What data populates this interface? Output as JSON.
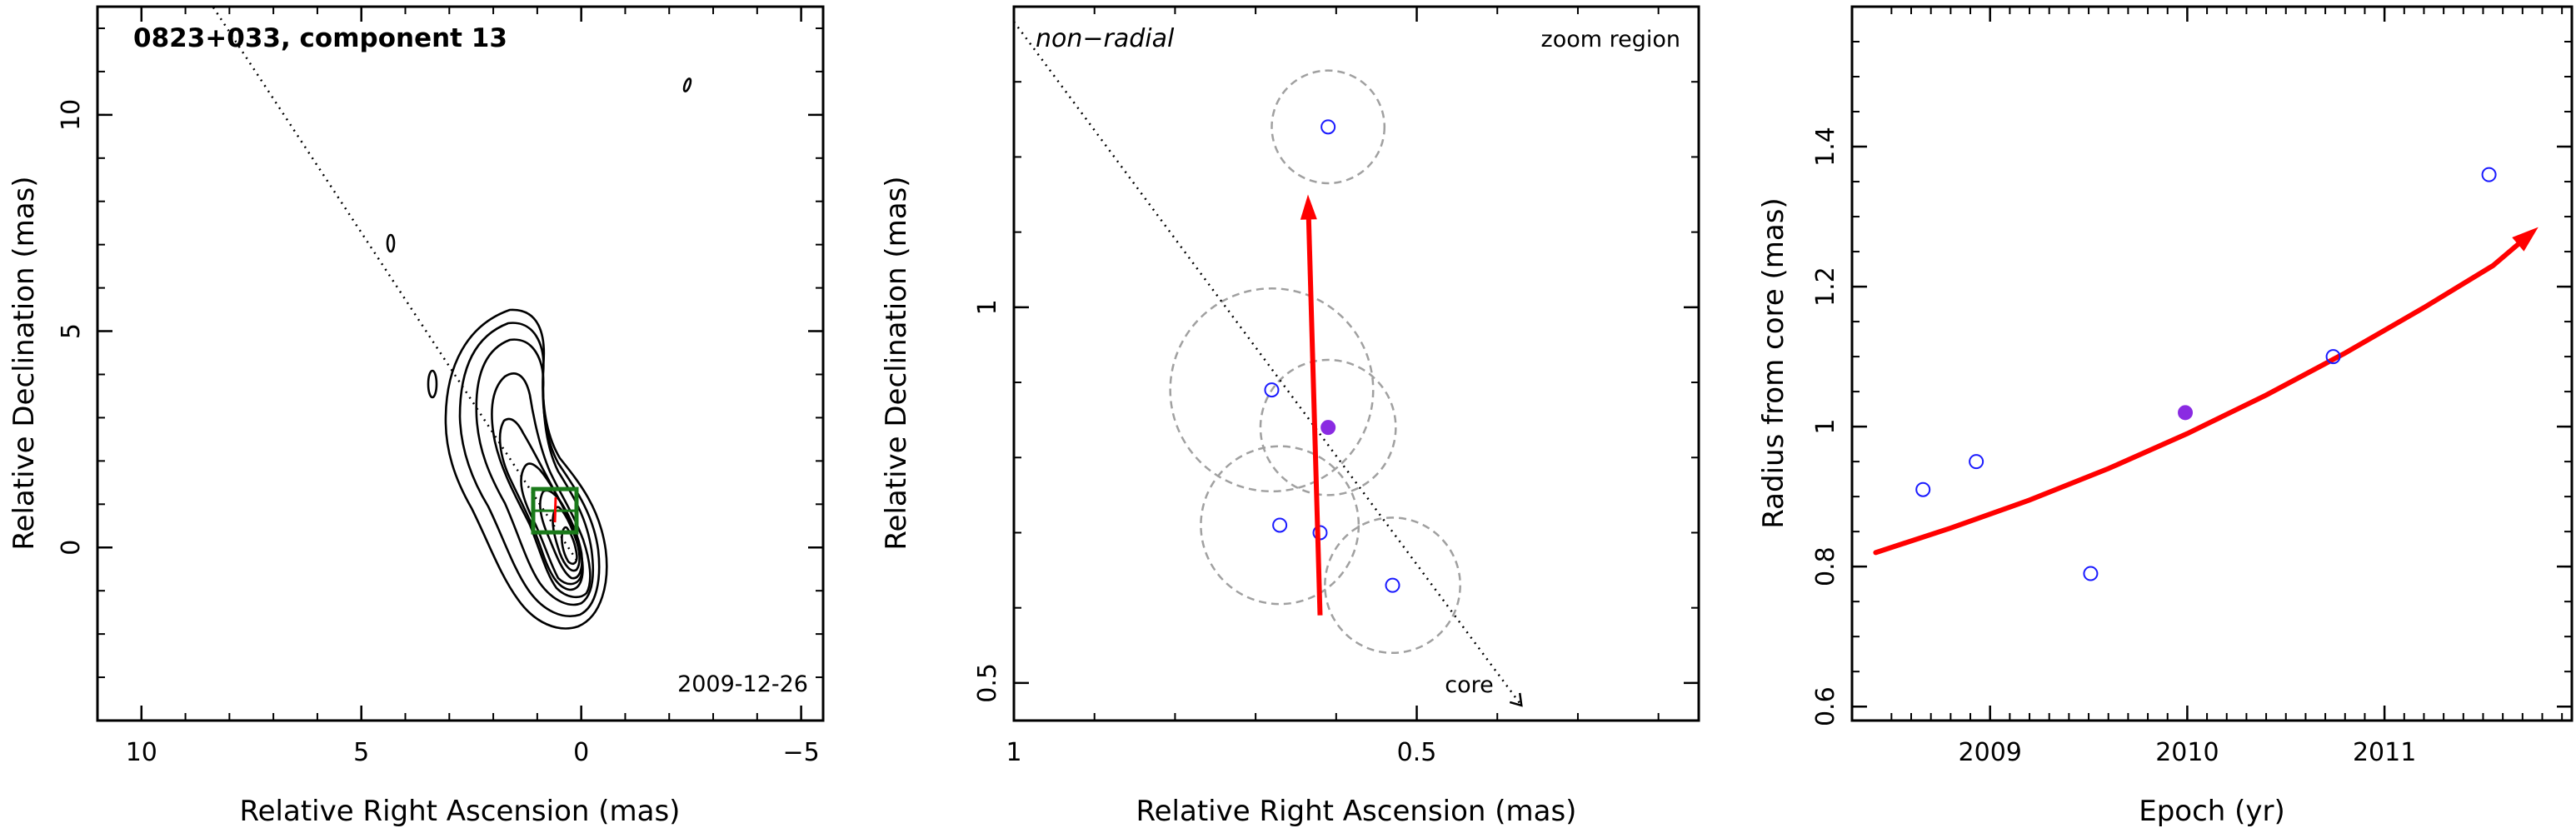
{
  "colors": {
    "marker": "#1a1aff",
    "filled_marker": "#8a2be2",
    "arrow": "#ff0000",
    "box": "#1a7a1a",
    "circle": "#a0a0a0",
    "contour": "#000000"
  },
  "chart_data": [
    {
      "type": "contour",
      "title": "0823+033, component 13",
      "date_label": "2009-12-26",
      "xlabel": "Relative Right Ascension (mas)",
      "ylabel": "Relative Declination (mas)",
      "xlim": [
        11,
        -5.5
      ],
      "ylim": [
        -4,
        12.5
      ],
      "xticks": [
        10,
        5,
        0,
        -5
      ],
      "yticks": [
        0,
        5,
        10
      ],
      "component_box_center": [
        0.6,
        0.85
      ],
      "trajectory_line": [
        [
          8.7,
          13
        ],
        [
          0.1,
          -0.3
        ]
      ]
    },
    {
      "type": "scatter",
      "top_left_label": "non−radial",
      "top_right_label": "zoom region",
      "core_label": "core",
      "xlabel": "Relative Right Ascension (mas)",
      "ylabel": "Relative Declination (mas)",
      "xlim": [
        1.0,
        0.15
      ],
      "ylim": [
        0.45,
        1.4
      ],
      "xticks": [
        1,
        0.5
      ],
      "yticks": [
        0.5,
        1
      ],
      "points": [
        {
          "x": 0.61,
          "y": 1.24,
          "filled": false
        },
        {
          "x": 0.68,
          "y": 0.89,
          "filled": false
        },
        {
          "x": 0.61,
          "y": 0.84,
          "filled": true
        },
        {
          "x": 0.67,
          "y": 0.71,
          "filled": false
        },
        {
          "x": 0.62,
          "y": 0.7,
          "filled": false
        },
        {
          "x": 0.53,
          "y": 0.63,
          "filled": false
        }
      ],
      "circles": [
        {
          "x": 0.61,
          "y": 1.24,
          "r": 0.075
        },
        {
          "x": 0.68,
          "y": 0.89,
          "r": 0.135
        },
        {
          "x": 0.61,
          "y": 0.84,
          "r": 0.09
        },
        {
          "x": 0.67,
          "y": 0.71,
          "r": 0.105
        },
        {
          "x": 0.53,
          "y": 0.63,
          "r": 0.09
        }
      ],
      "arrow": {
        "from": [
          0.62,
          0.59
        ],
        "to": [
          0.635,
          1.15
        ]
      },
      "trajectory_line": [
        [
          1.0,
          1.38
        ],
        [
          0.37,
          0.47
        ]
      ]
    },
    {
      "type": "scatter",
      "xlabel": "Epoch (yr)",
      "ylabel": "Radius from core (mas)",
      "xlim": [
        2008.3,
        2011.95
      ],
      "ylim": [
        0.58,
        1.6
      ],
      "xticks": [
        2009,
        2010,
        2011
      ],
      "yticks": [
        0.6,
        0.8,
        1,
        1.2,
        1.4
      ],
      "yticklabels": [
        "0.6",
        "0.8",
        "1",
        "1.2",
        "1.4"
      ],
      "points": [
        {
          "x": 2008.66,
          "y": 0.91,
          "filled": false
        },
        {
          "x": 2008.93,
          "y": 0.95,
          "filled": false
        },
        {
          "x": 2009.51,
          "y": 0.79,
          "filled": false
        },
        {
          "x": 2009.99,
          "y": 1.02,
          "filled": true
        },
        {
          "x": 2010.74,
          "y": 1.1,
          "filled": false
        },
        {
          "x": 2011.53,
          "y": 1.36,
          "filled": false
        }
      ],
      "fit_curve": {
        "x": [
          2008.42,
          2008.8,
          2009.2,
          2009.6,
          2010.0,
          2010.4,
          2010.8,
          2011.2,
          2011.55
        ],
        "y": [
          0.82,
          0.855,
          0.895,
          0.94,
          0.99,
          1.045,
          1.105,
          1.17,
          1.23
        ]
      },
      "arrow_tip": [
        2011.78,
        1.285
      ]
    }
  ]
}
